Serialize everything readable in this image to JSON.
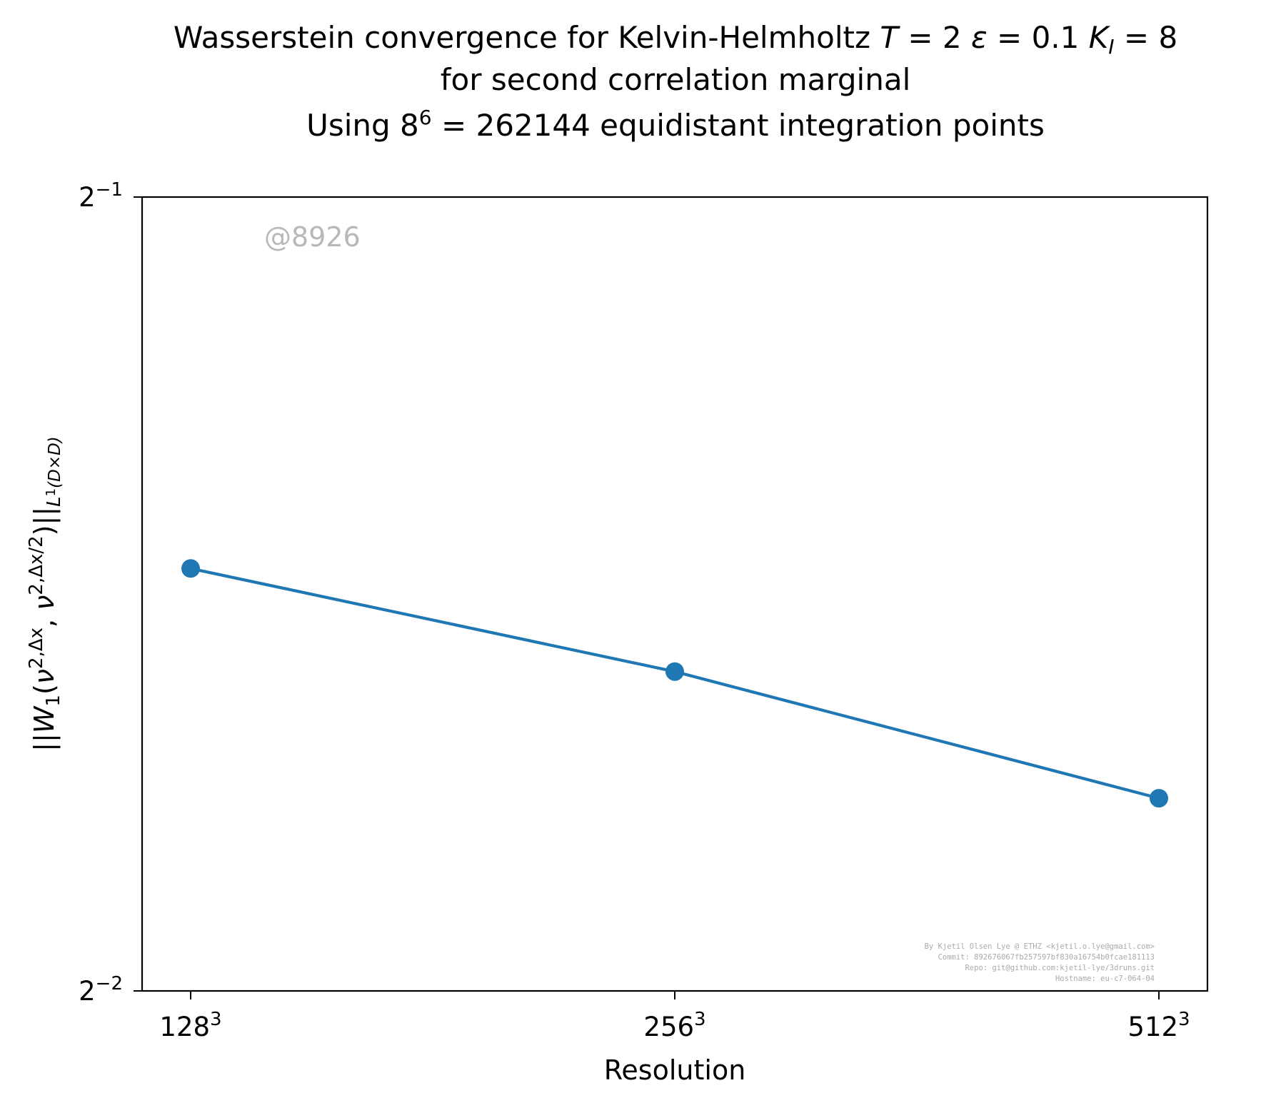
{
  "chart_data": {
    "type": "line",
    "title_lines": [
      [
        "Wasserstein convergence for Kelvin-Helmholtz ",
        "T",
        " = 2 ",
        "ε",
        " = 0.1 ",
        "K",
        "I",
        " = 8"
      ],
      [
        "for second correlation marginal"
      ],
      [
        "Using 8",
        "6",
        " = 262144 equidistant integration points"
      ]
    ],
    "xlabel": "Resolution",
    "ylabel": {
      "parts": [
        "||",
        "W",
        "1",
        "(",
        "ν",
        "2,Δx",
        ", ",
        "ν",
        "2,Δx/2",
        ")||",
        "L",
        "1",
        "(D×D)"
      ]
    },
    "x_scale": "log2",
    "y_scale": "log2",
    "x": [
      128,
      256,
      512
    ],
    "x_tick_labels": [
      {
        "base": "128",
        "exp": "3"
      },
      {
        "base": "256",
        "exp": "3"
      },
      {
        "base": "512",
        "exp": "3"
      }
    ],
    "y_ticks": [
      {
        "value": 0.5,
        "base": "2",
        "exp": "−1"
      },
      {
        "value": 0.25,
        "base": "2",
        "exp": "−2"
      }
    ],
    "ylim": [
      0.25,
      0.5
    ],
    "series": [
      {
        "values": [
          0.3615,
          0.3304,
          0.2958
        ],
        "color": "#1f77b4",
        "marker": "circle"
      }
    ],
    "grid": false,
    "legend": "none",
    "watermark": "@8926",
    "credits": [
      "By Kjetil Olsen Lye @ ETHZ <kjetil.o.lye@gmail.com>",
      "Commit: 892676067fb257597bf830a16754b0fcae181113",
      "Repo: git@github.com:kjetil-lye/3druns.git",
      "Hostname: eu-c7-064-04"
    ]
  }
}
